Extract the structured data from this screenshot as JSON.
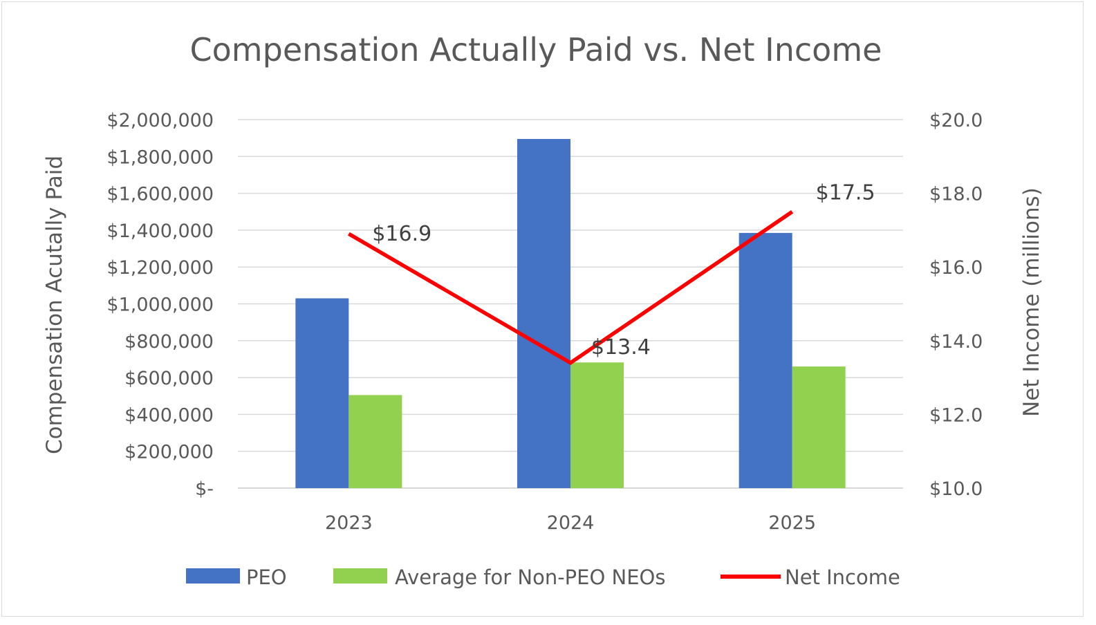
{
  "chart_data": {
    "type": "bar",
    "title": "Compensation Actually Paid vs. Net Income",
    "categories": [
      "2023",
      "2024",
      "2025"
    ],
    "series": [
      {
        "name": "PEO",
        "type": "bar",
        "axis": "left",
        "color": "#4472c4",
        "values": [
          1030000,
          1895000,
          1385000
        ]
      },
      {
        "name": "Average for Non-PEO NEOs",
        "type": "bar",
        "axis": "left",
        "color": "#92d050",
        "values": [
          505000,
          682000,
          660000
        ]
      },
      {
        "name": "Net Income",
        "type": "line",
        "axis": "right",
        "color": "#ff0000",
        "values": [
          16.9,
          13.4,
          17.5
        ],
        "data_labels": [
          "$16.9",
          "$13.4",
          "$17.5"
        ]
      }
    ],
    "ylabel": "Compensation Acutally Paid",
    "y2label": "Net Income (millions)",
    "ylim": [
      0,
      2000000
    ],
    "y2lim": [
      10.0,
      20.0
    ],
    "yticks": [
      0,
      200000,
      400000,
      600000,
      800000,
      1000000,
      1200000,
      1400000,
      1600000,
      1800000,
      2000000
    ],
    "ytick_labels": [
      "$-",
      "$200,000",
      "$400,000",
      "$600,000",
      "$800,000",
      "$1,000,000",
      "$1,200,000",
      "$1,400,000",
      "$1,600,000",
      "$1,800,000",
      "$2,000,000"
    ],
    "y2ticks": [
      10,
      12,
      14,
      16,
      18,
      20
    ],
    "y2tick_labels": [
      "$10.0",
      "$12.0",
      "$14.0",
      "$16.0",
      "$18.0",
      "$20.0"
    ],
    "grid": true,
    "legend": "bottom"
  }
}
